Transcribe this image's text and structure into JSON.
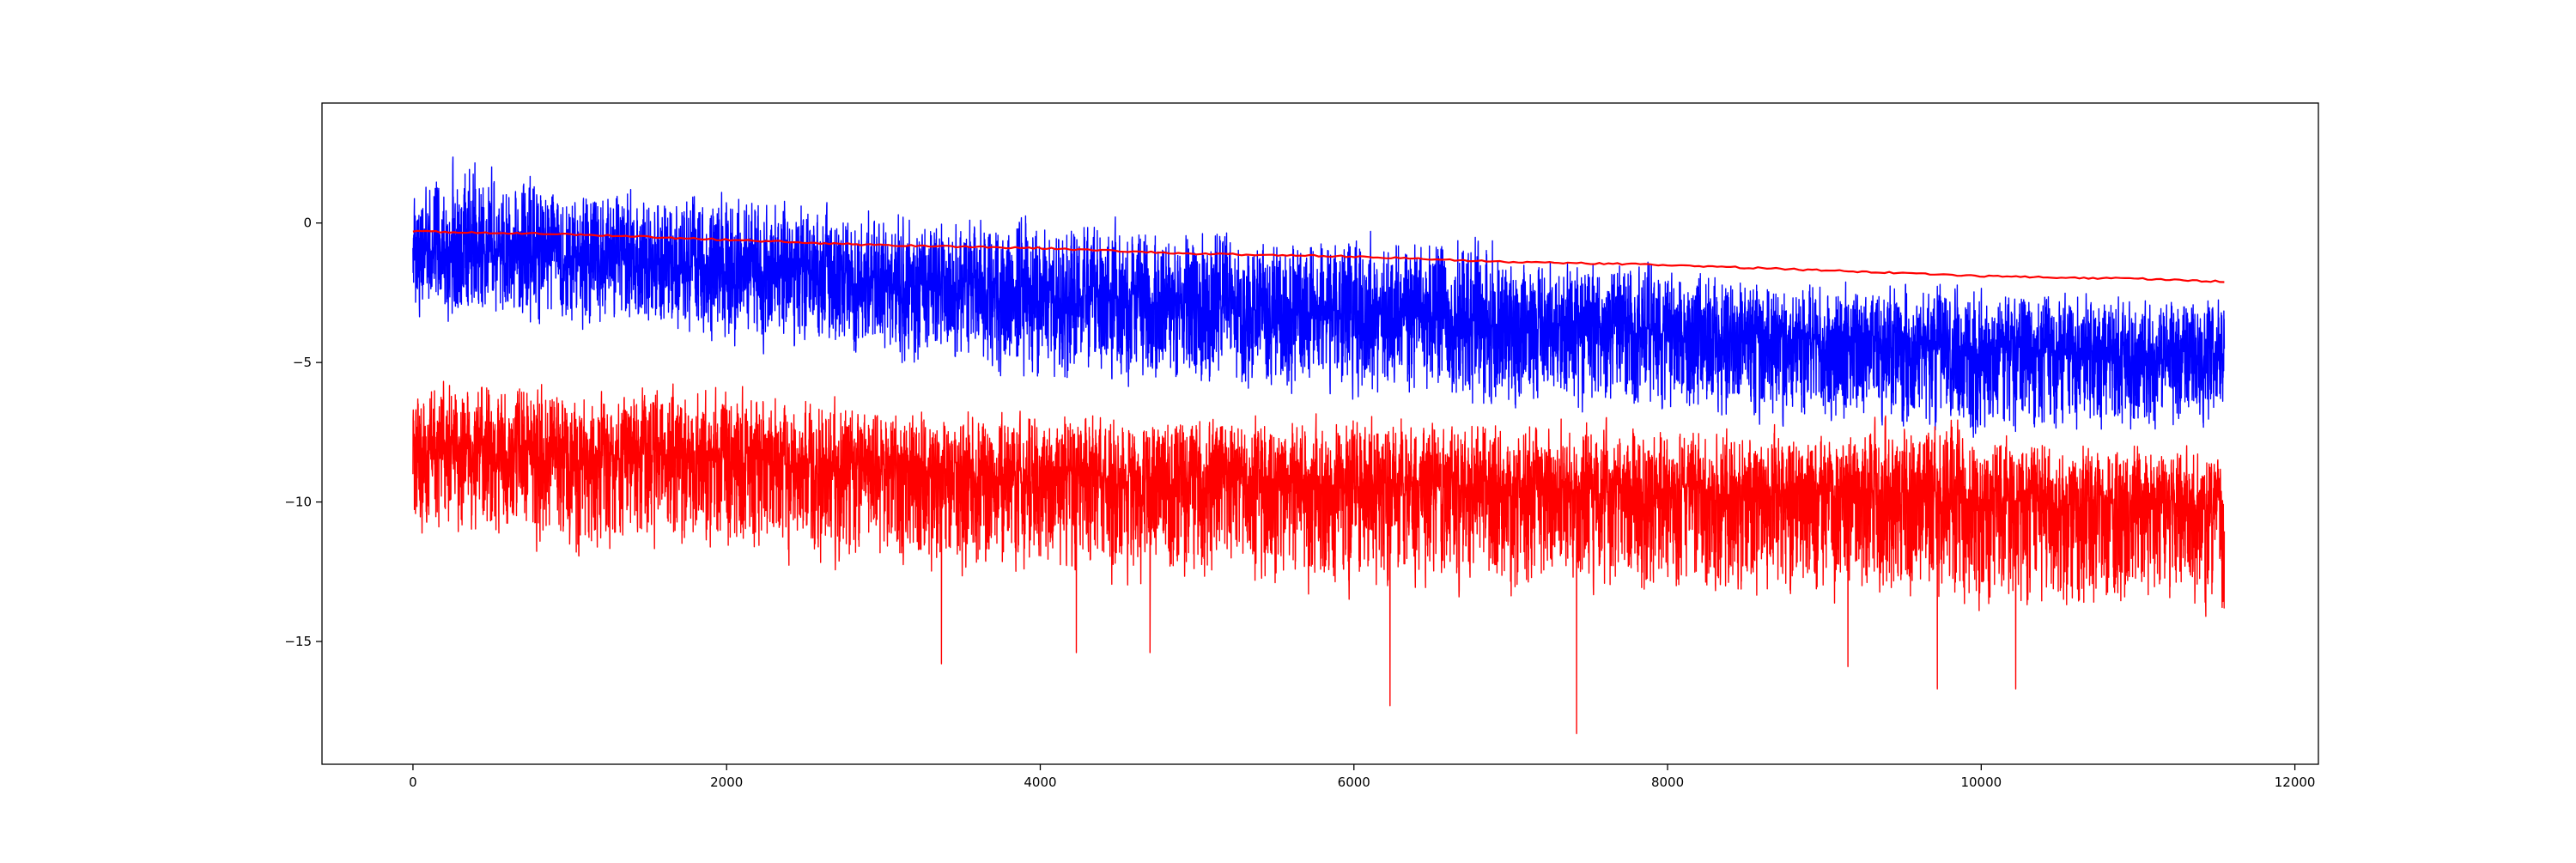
{
  "chart_data": {
    "type": "line",
    "title": "",
    "xlabel": "",
    "ylabel": "",
    "xlim": [
      -580,
      12150
    ],
    "ylim": [
      -19.4,
      4.3
    ],
    "grid": false,
    "legend": "none",
    "x_ticks": [
      0,
      2000,
      4000,
      6000,
      8000,
      10000,
      12000
    ],
    "y_ticks": [
      0,
      -5,
      -10,
      -15
    ],
    "series": [
      {
        "role": "noisy-upper",
        "color": "#0000ff",
        "n_points": 11550,
        "x_range": [
          0,
          11550
        ],
        "center": [
          [
            0,
            -0.9
          ],
          [
            1000,
            -1.3
          ],
          [
            2000,
            -1.6
          ],
          [
            3000,
            -2.0
          ],
          [
            4000,
            -2.5
          ],
          [
            5000,
            -2.9
          ],
          [
            6000,
            -3.3
          ],
          [
            7000,
            -3.6
          ],
          [
            8000,
            -3.9
          ],
          [
            9000,
            -4.2
          ],
          [
            10000,
            -4.4
          ],
          [
            11000,
            -4.6
          ],
          [
            11550,
            -4.8
          ]
        ],
        "upper_envelope": [
          [
            0,
            1.2
          ],
          [
            200,
            3.2
          ],
          [
            1000,
            1.6
          ],
          [
            2000,
            1.7
          ],
          [
            3000,
            0.8
          ],
          [
            4000,
            0.8
          ],
          [
            5000,
            0.4
          ],
          [
            6000,
            0.0
          ],
          [
            6850,
            0.3
          ],
          [
            7000,
            -0.6
          ],
          [
            8000,
            -1.0
          ],
          [
            9000,
            -1.8
          ],
          [
            10000,
            -1.8
          ],
          [
            11000,
            -2.3
          ],
          [
            11550,
            -2.0
          ]
        ],
        "lower_envelope": [
          [
            0,
            -4.0
          ],
          [
            1000,
            -4.2
          ],
          [
            2000,
            -4.8
          ],
          [
            3000,
            -5.5
          ],
          [
            4000,
            -6.2
          ],
          [
            5000,
            -6.5
          ],
          [
            6000,
            -6.8
          ],
          [
            7000,
            -7.2
          ],
          [
            8000,
            -7.5
          ],
          [
            9000,
            -7.8
          ],
          [
            10000,
            -8.3
          ],
          [
            11000,
            -8.0
          ],
          [
            11550,
            -7.6
          ]
        ]
      },
      {
        "role": "noisy-lower",
        "color": "#ff0000",
        "n_points": 11550,
        "x_range": [
          0,
          11550
        ],
        "center": [
          [
            0,
            -8.0
          ],
          [
            1000,
            -8.3
          ],
          [
            2000,
            -8.5
          ],
          [
            3000,
            -8.8
          ],
          [
            4000,
            -9.0
          ],
          [
            5000,
            -9.2
          ],
          [
            6000,
            -9.4
          ],
          [
            7000,
            -9.4
          ],
          [
            8000,
            -9.5
          ],
          [
            9000,
            -9.6
          ],
          [
            10000,
            -9.8
          ],
          [
            11000,
            -9.9
          ],
          [
            11550,
            -10.0
          ]
        ],
        "upper_envelope": [
          [
            0,
            -6.0
          ],
          [
            300,
            -4.9
          ],
          [
            1000,
            -5.4
          ],
          [
            2000,
            -5.5
          ],
          [
            3000,
            -6.2
          ],
          [
            4000,
            -6.4
          ],
          [
            5000,
            -6.5
          ],
          [
            6000,
            -6.5
          ],
          [
            7000,
            -6.7
          ],
          [
            8000,
            -6.8
          ],
          [
            9000,
            -7.0
          ],
          [
            9600,
            -6.3
          ],
          [
            10000,
            -7.2
          ],
          [
            11000,
            -7.5
          ],
          [
            11550,
            -7.8
          ]
        ],
        "lower_envelope": [
          [
            0,
            -11.5
          ],
          [
            1000,
            -12.5
          ],
          [
            2000,
            -12.5
          ],
          [
            3000,
            -13.0
          ],
          [
            4000,
            -13.5
          ],
          [
            5000,
            -13.5
          ],
          [
            6000,
            -14.0
          ],
          [
            7000,
            -14.0
          ],
          [
            8000,
            -14.0
          ],
          [
            9000,
            -14.5
          ],
          [
            10000,
            -14.5
          ],
          [
            11000,
            -14.5
          ],
          [
            11550,
            -14.5
          ]
        ],
        "spikes": [
          [
            3370,
            -15.8
          ],
          [
            4230,
            -15.4
          ],
          [
            4700,
            -15.4
          ],
          [
            6230,
            -17.3
          ],
          [
            7420,
            -18.3
          ],
          [
            9150,
            -15.9
          ],
          [
            9720,
            -16.7
          ],
          [
            10220,
            -16.7
          ]
        ]
      },
      {
        "role": "trend",
        "color": "#ff0000",
        "values": [
          [
            0,
            -0.3
          ],
          [
            1000,
            -0.4
          ],
          [
            2000,
            -0.6
          ],
          [
            3000,
            -0.8
          ],
          [
            4000,
            -0.9
          ],
          [
            5000,
            -1.1
          ],
          [
            6000,
            -1.2
          ],
          [
            7000,
            -1.4
          ],
          [
            8000,
            -1.5
          ],
          [
            9000,
            -1.7
          ],
          [
            10000,
            -1.9
          ],
          [
            11000,
            -2.0
          ],
          [
            11550,
            -2.1
          ]
        ]
      }
    ]
  }
}
